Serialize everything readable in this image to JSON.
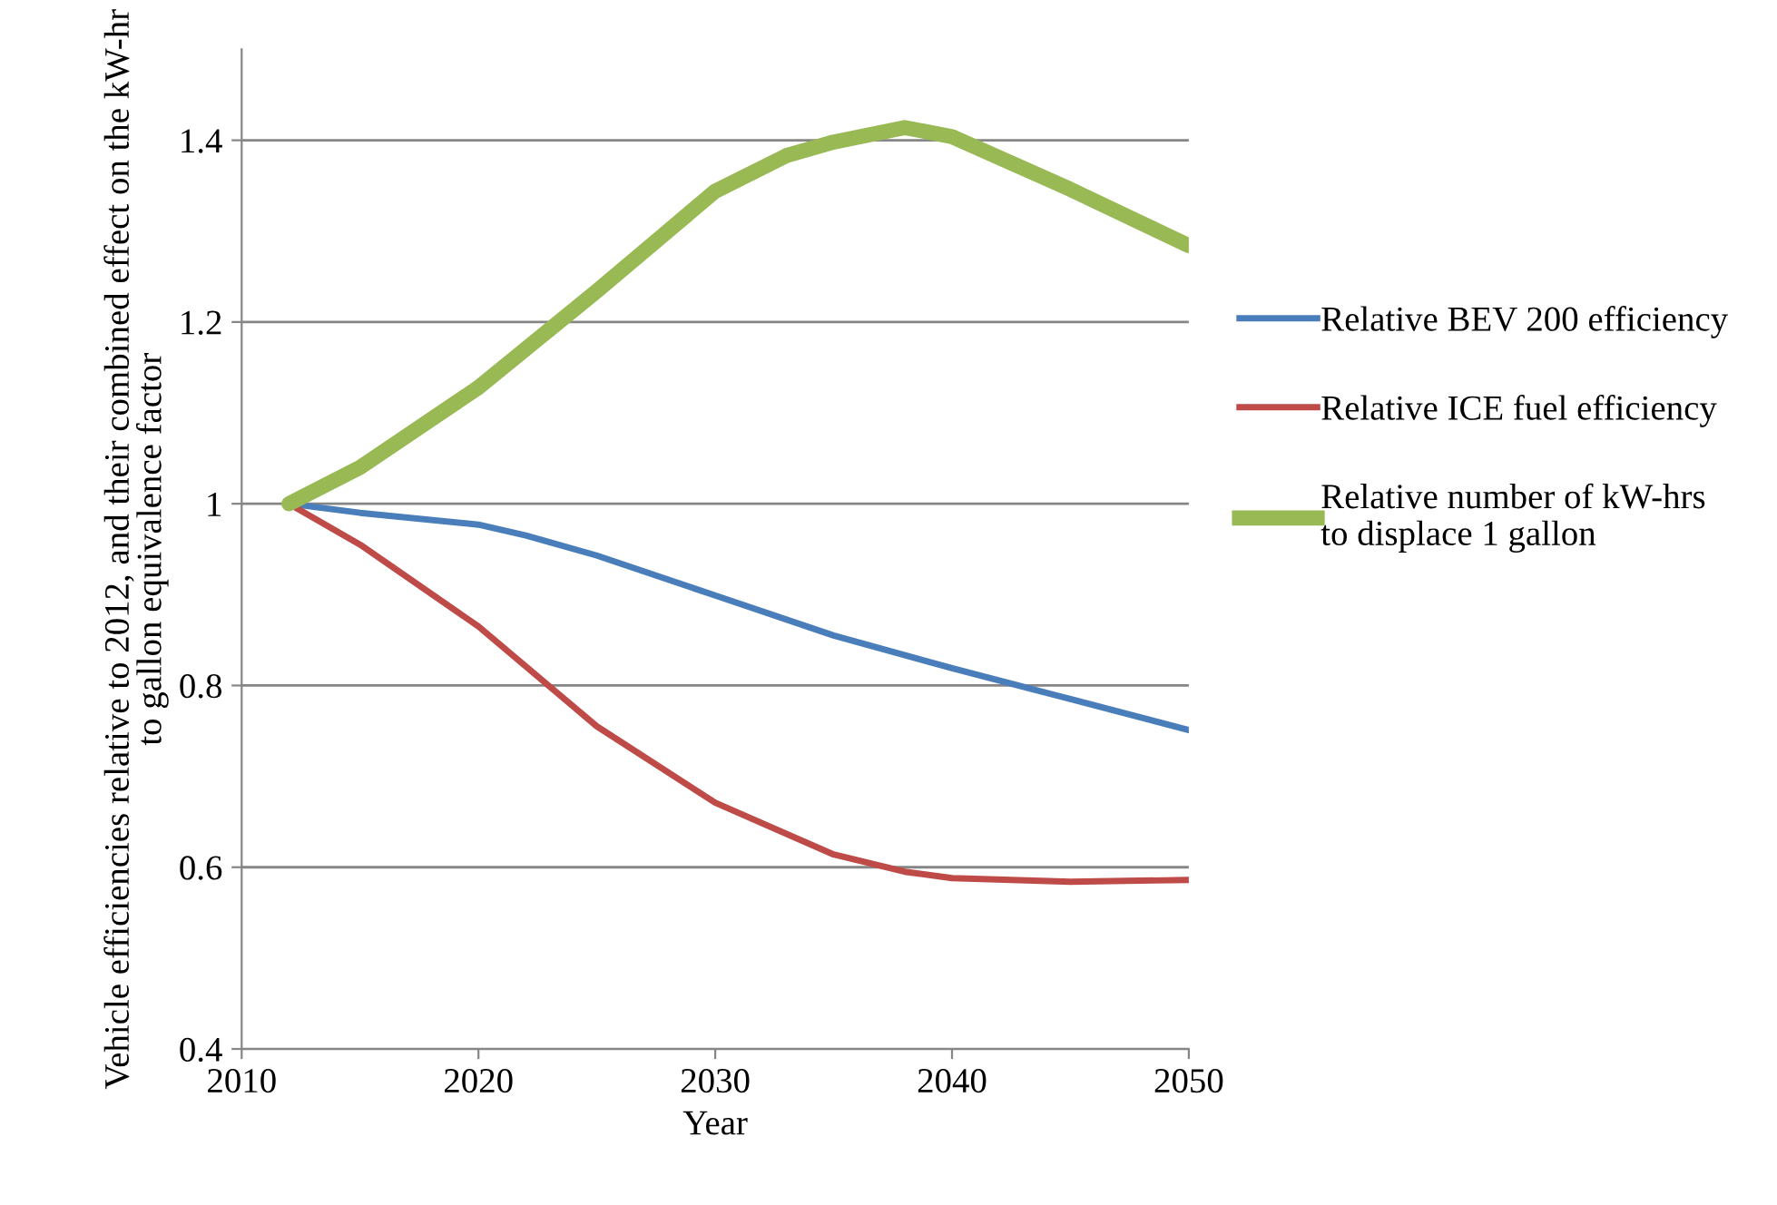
{
  "chart_data": {
    "type": "line",
    "xlabel": "Year",
    "ylabel": "Vehicle efficiencies relative to 2012, and their combined effect on the kW-hr to gallon equivalence factor",
    "series": [
      {
        "name": "Relative BEV 200 efficiency",
        "color": "#4a7ebb",
        "x": [
          2012,
          2015,
          2020,
          2022,
          2025,
          2030,
          2035,
          2040,
          2045,
          2050
        ],
        "values": [
          1.0,
          0.99,
          0.977,
          0.965,
          0.943,
          0.899,
          0.855,
          0.819,
          0.785,
          0.751
        ]
      },
      {
        "name": "Relative ICE fuel efficiency",
        "color": "#be4b48",
        "x": [
          2012,
          2015,
          2020,
          2025,
          2030,
          2035,
          2038,
          2040,
          2045,
          2050
        ],
        "values": [
          1.0,
          0.955,
          0.865,
          0.755,
          0.671,
          0.614,
          0.595,
          0.588,
          0.584,
          0.586
        ]
      },
      {
        "name": "Relative number of kW-hrs\nto displace 1 gallon",
        "color": "#98b954",
        "x": [
          2012,
          2015,
          2020,
          2025,
          2030,
          2033,
          2035,
          2038,
          2040,
          2045,
          2050
        ],
        "values": [
          1.0,
          1.04,
          1.128,
          1.234,
          1.344,
          1.383,
          1.398,
          1.414,
          1.404,
          1.346,
          1.284
        ]
      }
    ],
    "xlim": [
      2010,
      2050
    ],
    "xticks": [
      2010,
      2020,
      2030,
      2040,
      2050
    ],
    "ylim": [
      0.4,
      1.5
    ],
    "yticks": [
      0.4,
      0.6,
      0.8,
      1,
      1.2,
      1.4
    ],
    "grid": "y",
    "legend": "right",
    "marker": "none",
    "line_style": "solid"
  }
}
